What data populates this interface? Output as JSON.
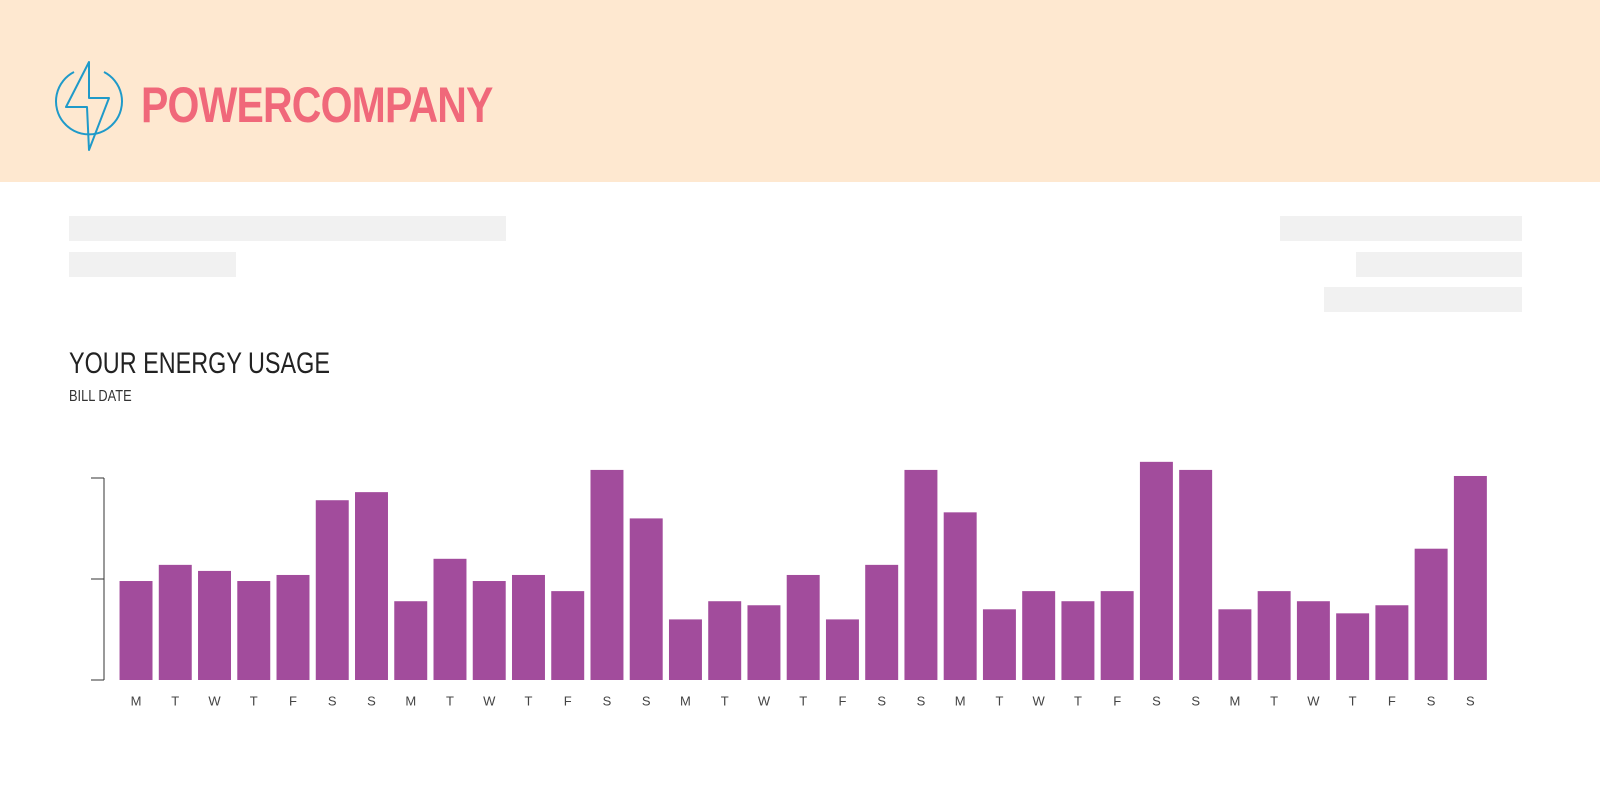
{
  "header": {
    "brand": "POWERCOMPANY"
  },
  "chart_data": {
    "type": "bar",
    "title": "YOUR ENERGY USAGE",
    "subtitle": "BILL DATE",
    "categories": [
      "M",
      "T",
      "W",
      "T",
      "F",
      "S",
      "S",
      "M",
      "T",
      "W",
      "T",
      "F",
      "S",
      "S",
      "M",
      "T",
      "W",
      "T",
      "F",
      "S",
      "S",
      "M",
      "T",
      "W",
      "T",
      "F",
      "S",
      "S",
      "M",
      "T",
      "W",
      "T",
      "F",
      "S",
      "S"
    ],
    "values": [
      49,
      57,
      54,
      49,
      52,
      89,
      93,
      39,
      60,
      49,
      52,
      44,
      104,
      80,
      30,
      39,
      37,
      52,
      30,
      57,
      104,
      83,
      35,
      44,
      39,
      44,
      108,
      104,
      35,
      44,
      39,
      33,
      37,
      65,
      101
    ],
    "color": "#a24c9c",
    "ylim": [
      0,
      100
    ],
    "yticks": [
      0,
      50,
      100
    ]
  }
}
